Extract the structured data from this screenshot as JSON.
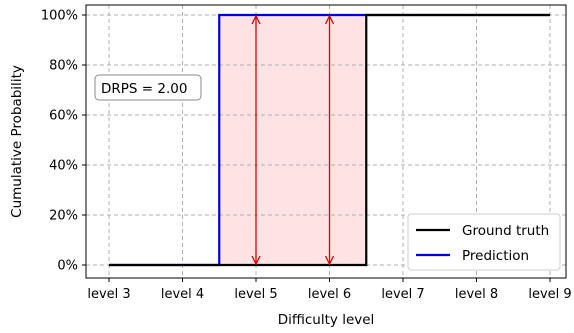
{
  "chart_data": {
    "type": "line",
    "step": true,
    "title": "",
    "xlabel": "Difficulty level",
    "ylabel": "Cumulative Probability",
    "categories": [
      "level 3",
      "level 4",
      "level 5",
      "level 6",
      "level 7",
      "level 8",
      "level 9"
    ],
    "yticks": [
      "0%",
      "20%",
      "40%",
      "60%",
      "80%",
      "100%"
    ],
    "ylim": [
      0,
      1
    ],
    "grid": true,
    "legend_placement": "bottom-right",
    "series": [
      {
        "name": "Ground truth",
        "color": "#000000",
        "step_after_index": 3.5,
        "values": [
          0,
          0,
          0,
          0,
          1,
          1,
          1
        ]
      },
      {
        "name": "Prediction",
        "color": "#0000dd",
        "step_after_index": 1.5,
        "values": [
          0,
          0,
          1,
          1,
          1,
          1,
          1
        ]
      }
    ],
    "shaded_region": {
      "from_index": 1.5,
      "to_index": 3.5,
      "ylim": [
        0,
        1
      ],
      "color": "#fde3e3"
    },
    "arrows": [
      {
        "x_index": 2,
        "from": 0,
        "to": 1,
        "color": "#e00000"
      },
      {
        "x_index": 3,
        "from": 0,
        "to": 1,
        "color": "#e00000"
      }
    ],
    "annotation": {
      "text": "DRPS = 2.00",
      "placement": "upper-left"
    }
  }
}
